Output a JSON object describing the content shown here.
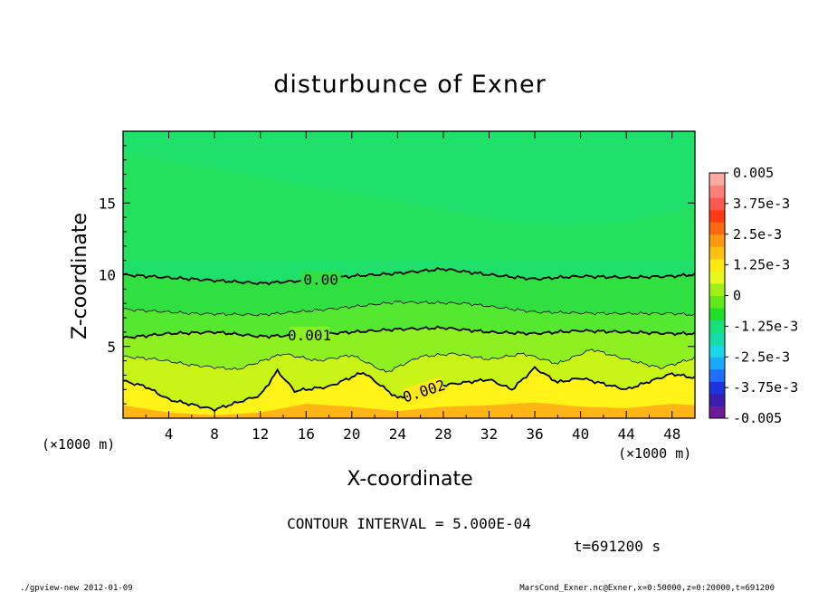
{
  "chart_data": {
    "type": "heatmap",
    "title": "disturbunce of Exner",
    "xlabel": "X-coordinate",
    "ylabel": "Z-coordinate",
    "x_unit_left": "(×1000 m)",
    "x_unit_right": "(×1000 m)",
    "xlim": [
      0,
      50
    ],
    "ylim": [
      0,
      20
    ],
    "x_ticks": [
      "4",
      "8",
      "12",
      "16",
      "20",
      "24",
      "28",
      "32",
      "36",
      "40",
      "44",
      "48"
    ],
    "y_ticks": [
      "5",
      "10",
      "15"
    ],
    "x_tick_values": [
      4,
      8,
      12,
      16,
      20,
      24,
      28,
      32,
      36,
      40,
      44,
      48
    ],
    "y_tick_values": [
      5,
      10,
      15
    ],
    "colorbar": {
      "labels": [
        "0.005",
        "3.75e-3",
        "2.5e-3",
        "1.25e-3",
        "0",
        "-1.25e-3",
        "-2.5e-3",
        "-3.75e-3",
        "-0.005"
      ],
      "range": [
        -0.005,
        0.005
      ],
      "colors": [
        "#6a1b9a",
        "#3a1cb0",
        "#1d33e0",
        "#1f6fff",
        "#1aa9ff",
        "#19d7e8",
        "#17dca8",
        "#18e07a",
        "#1fe028",
        "#5fe81a",
        "#a0f018",
        "#e8f81c",
        "#ffe812",
        "#ffc010",
        "#ff9a0e",
        "#ff6a10",
        "#ff3a14",
        "#ff5a50",
        "#ff8078",
        "#ffaaa0"
      ]
    },
    "contours": [
      {
        "level": 0.0,
        "label": "0.00",
        "x": [
          0,
          4,
          8,
          12,
          16,
          20,
          24,
          28,
          32,
          36,
          40,
          44,
          48,
          50
        ],
        "z": [
          10.0,
          9.8,
          9.6,
          9.4,
          9.6,
          9.9,
          10.1,
          10.4,
          10.0,
          9.7,
          9.9,
          9.8,
          9.9,
          10.0
        ]
      },
      {
        "level": 0.001,
        "label": "0.001",
        "x": [
          0,
          4,
          8,
          12,
          16,
          20,
          24,
          28,
          32,
          36,
          40,
          44,
          48,
          50
        ],
        "z": [
          5.6,
          5.9,
          6.0,
          5.7,
          5.8,
          6.0,
          6.2,
          6.3,
          6.0,
          5.9,
          6.1,
          6.0,
          5.9,
          5.9
        ]
      },
      {
        "level": 0.002,
        "label": "0.002",
        "x": [
          0,
          2,
          4,
          8,
          12,
          13.5,
          15,
          18,
          21,
          24,
          28,
          32,
          34,
          36,
          38,
          40,
          44,
          48,
          50
        ],
        "z": [
          2.6,
          2.2,
          1.3,
          0.6,
          1.6,
          3.3,
          1.9,
          2.2,
          3.2,
          1.4,
          2.3,
          2.7,
          2.0,
          3.5,
          2.5,
          2.8,
          2.0,
          3.1,
          2.8
        ]
      }
    ],
    "thin_contours": [
      {
        "level": 0.0005,
        "x": [
          0,
          6,
          12,
          18,
          24,
          30,
          36,
          42,
          48,
          50
        ],
        "z": [
          7.6,
          7.3,
          7.2,
          7.6,
          8.1,
          8.0,
          7.4,
          7.3,
          7.3,
          7.2
        ]
      },
      {
        "level": 0.0015,
        "x": [
          0,
          3,
          6,
          10,
          14,
          17,
          20,
          23,
          26,
          29,
          32,
          35,
          38,
          41,
          44,
          47,
          50
        ],
        "z": [
          4.3,
          4.1,
          3.7,
          3.4,
          4.5,
          4.0,
          4.4,
          3.2,
          4.3,
          4.5,
          4.1,
          4.5,
          3.8,
          4.8,
          4.1,
          3.5,
          4.2
        ]
      }
    ],
    "band_heights": {
      "x": [
        0,
        4,
        8,
        12,
        16,
        20,
        24,
        28,
        32,
        36,
        40,
        44,
        48,
        50
      ],
      "z_0_0025": [
        0.9,
        0.4,
        0.2,
        0.4,
        1.0,
        0.8,
        0.5,
        0.8,
        0.9,
        1.1,
        0.8,
        0.7,
        1.0,
        0.9
      ]
    },
    "contour_interval": "CONTOUR INTERVAL = 5.000E-04",
    "time_label": "t=691200 s"
  },
  "footer": {
    "left": "./gpview-new   2012-01-09",
    "right": "MarsCond_Exner.nc@Exner,x=0:50000,z=0:20000,t=691200"
  }
}
